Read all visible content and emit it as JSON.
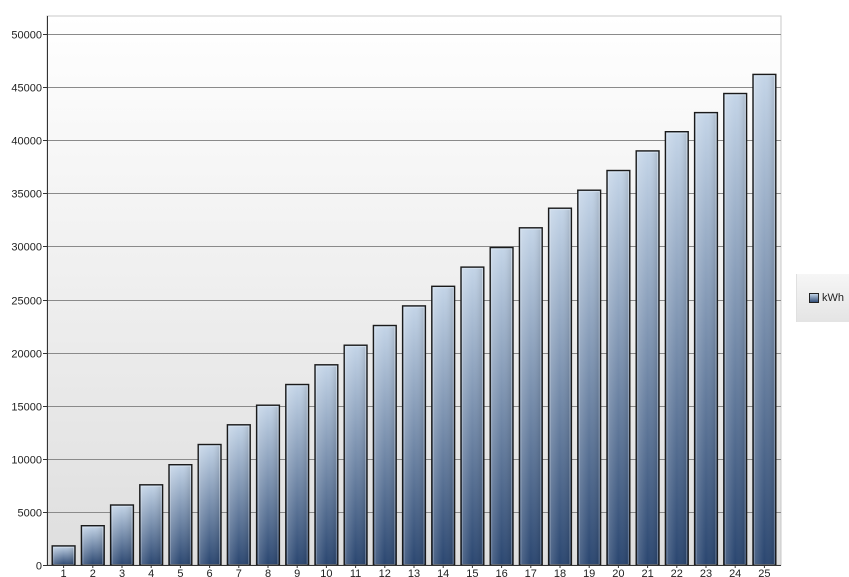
{
  "chart_data": {
    "type": "bar",
    "title": "",
    "xlabel": "",
    "ylabel": "",
    "categories": [
      "1",
      "2",
      "3",
      "4",
      "5",
      "6",
      "7",
      "8",
      "9",
      "10",
      "11",
      "12",
      "13",
      "14",
      "15",
      "16",
      "17",
      "18",
      "19",
      "20",
      "21",
      "22",
      "23",
      "24",
      "25"
    ],
    "series": [
      {
        "name": "kWh",
        "values": [
          1800,
          3700,
          5650,
          7550,
          9450,
          11350,
          13200,
          15050,
          17000,
          18850,
          20700,
          22550,
          24400,
          26250,
          28050,
          29900,
          31750,
          33600,
          35300,
          37150,
          39000,
          40800,
          42600,
          44400,
          46200
        ]
      }
    ],
    "ylim": [
      0,
      51700
    ],
    "yticks": [
      "0",
      "5000",
      "10000",
      "15000",
      "20000",
      "25000",
      "30000",
      "35000",
      "40000",
      "45000",
      "50000"
    ],
    "ytick_values": [
      0,
      5000,
      10000,
      15000,
      20000,
      25000,
      30000,
      35000,
      40000,
      45000,
      50000
    ],
    "grid": true,
    "legend_position": "right"
  },
  "legend": {
    "label": "kWh"
  },
  "colors": {
    "bar_top": "#c4d5e8",
    "bar_bottom": "#2a4670",
    "bar_stroke": "#1a1a1a",
    "grid": "#8a8a8a",
    "plot_bg_top": "#ffffff",
    "plot_bg_bottom": "#dedede"
  }
}
